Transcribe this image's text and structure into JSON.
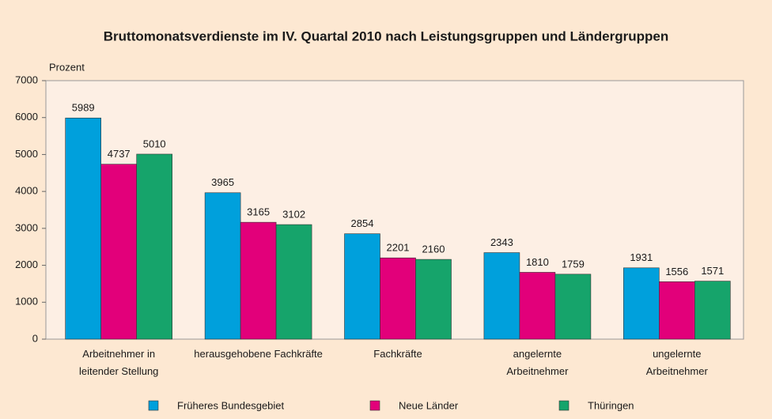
{
  "chart_data": {
    "type": "bar",
    "title": "Bruttomonatsverdienste im IV. Quartal 2010 nach Leistungsgruppen und Ländergruppen",
    "y_label": "Prozent",
    "categories": [
      "Arbeitnehmer in\nleitender Stellung",
      "herausgehobene Fachkräfte",
      "Fachkräfte",
      "angelernte\nArbeitnehmer",
      "ungelernte\nArbeitnehmer"
    ],
    "series": [
      {
        "name": "Früheres Bundesgebiet",
        "color": "#00a0dc",
        "values": [
          5989,
          3965,
          2854,
          2343,
          1931
        ]
      },
      {
        "name": "Neue Länder",
        "color": "#e2007a",
        "values": [
          4737,
          3165,
          2201,
          1810,
          1556
        ]
      },
      {
        "name": "Thüringen",
        "color": "#16a46b",
        "values": [
          5010,
          3102,
          2160,
          1759,
          1571
        ]
      }
    ],
    "ylim": [
      0,
      7000
    ],
    "yticks": [
      0,
      1000,
      2000,
      3000,
      4000,
      5000,
      6000,
      7000
    ],
    "grid": false,
    "legend": "bottom"
  }
}
